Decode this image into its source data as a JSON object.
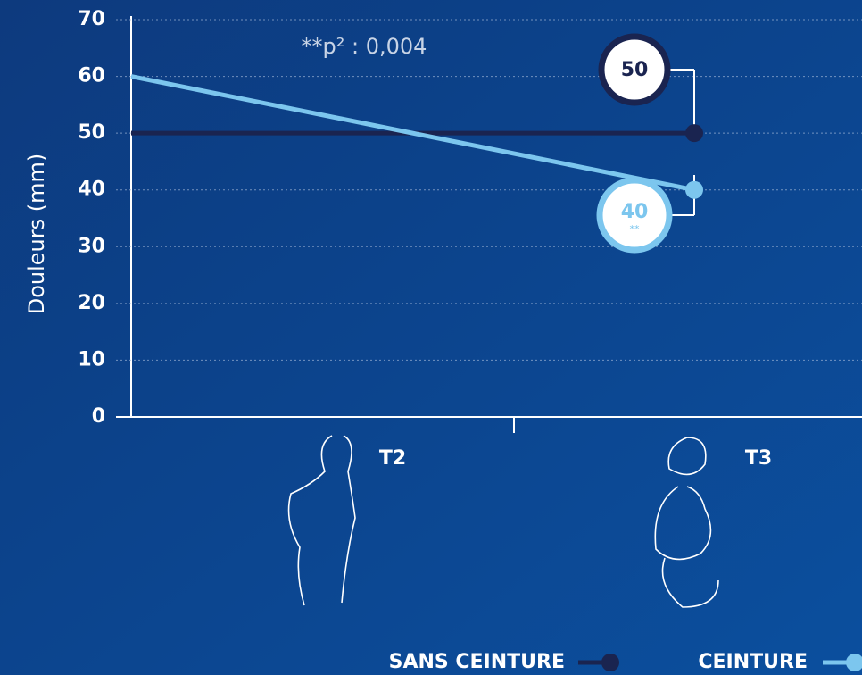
{
  "chart_data": {
    "type": "line",
    "y_label": "Douleurs (mm)",
    "annotation": "**p² : 0,004",
    "categories": [
      "T2",
      "T3"
    ],
    "ylim": [
      0,
      70
    ],
    "yticks": [
      0,
      10,
      20,
      30,
      40,
      50,
      60,
      70
    ],
    "grid": true,
    "series": [
      {
        "name": "SANS CEINTURE",
        "color": "#1a2450",
        "values": [
          50,
          50
        ]
      },
      {
        "name": "CEINTURE",
        "color": "#7cc6ee",
        "values": [
          60,
          40
        ],
        "significance": "**"
      }
    ]
  }
}
